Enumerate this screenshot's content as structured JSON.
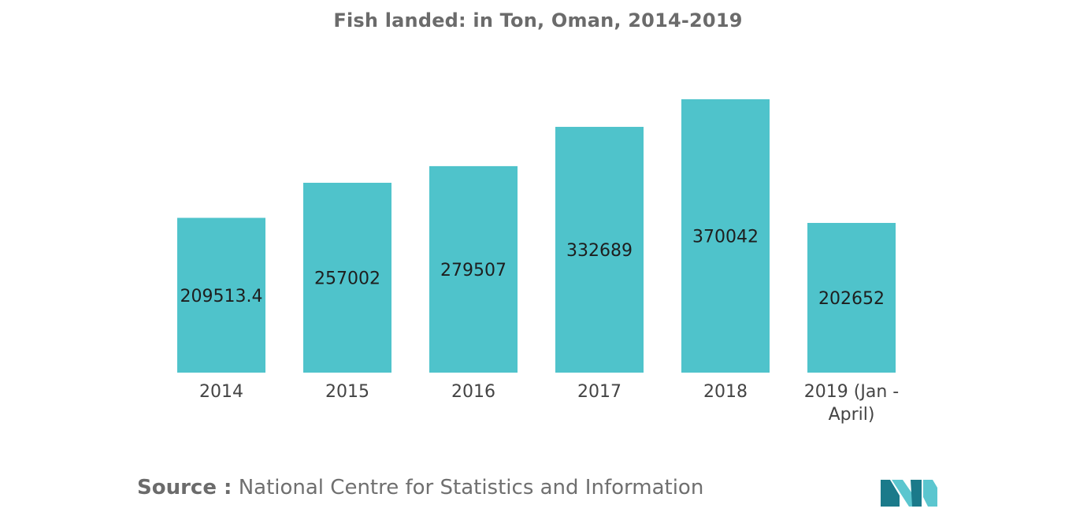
{
  "chart_data": {
    "type": "bar",
    "title": "Fish landed: in Ton, Oman, 2014-2019",
    "categories": [
      "2014",
      "2015",
      "2016",
      "2017",
      "2018",
      "2019 (Jan -\nApril)"
    ],
    "values": [
      209513.4,
      257002,
      279507,
      332689,
      370042,
      202652
    ],
    "value_labels": [
      "209513.4",
      "257002",
      "279507",
      "332689",
      "370042",
      "202652"
    ],
    "xlabel": "",
    "ylabel": "",
    "ylim": [
      0,
      370042
    ],
    "grid": false,
    "legend": "none"
  },
  "source": {
    "label": "Source :",
    "text": "National Centre for Statistics and Information"
  },
  "colors": {
    "bar": "#4fc3cb",
    "logo_dark": "#1b7a8a",
    "logo_light": "#5bc6cf"
  }
}
